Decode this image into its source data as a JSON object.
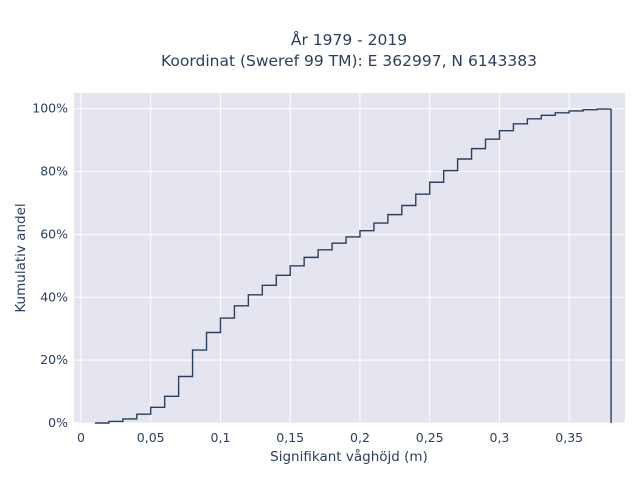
{
  "chart_data": {
    "type": "line",
    "line_shape": "step",
    "title_lines": [
      "År 1979 - 2019",
      "Koordinat (Sweref 99 TM): E 362997, N 6143383"
    ],
    "xlabel": "Signifikant våghöjd (m)",
    "ylabel": "Kumulativ andel",
    "xlim": [
      -0.005,
      0.39
    ],
    "ylim": [
      0,
      1.05
    ],
    "x_ticks": [
      0,
      0.05,
      0.1,
      0.15,
      0.2,
      0.25,
      0.3,
      0.35
    ],
    "x_tick_labels": [
      "0",
      "0,05",
      "0,1",
      "0,15",
      "0,2",
      "0,25",
      "0,3",
      "0,35"
    ],
    "y_ticks": [
      0,
      0.2,
      0.4,
      0.6,
      0.8,
      1.0
    ],
    "y_tick_labels": [
      "0%",
      "20%",
      "40%",
      "60%",
      "80%",
      "100%"
    ],
    "grid": true,
    "background": "#e5e5f0",
    "grid_color": "#ffffff",
    "line_color": "#2a3f5f",
    "series": [
      {
        "x": [
          0.01,
          0.02,
          0.03,
          0.04,
          0.05,
          0.06,
          0.07,
          0.08,
          0.09,
          0.1,
          0.11,
          0.12,
          0.13,
          0.14,
          0.15,
          0.16,
          0.17,
          0.18,
          0.19,
          0.2,
          0.21,
          0.22,
          0.23,
          0.24,
          0.25,
          0.26,
          0.27,
          0.28,
          0.29,
          0.3,
          0.31,
          0.32,
          0.33,
          0.34,
          0.35,
          0.36,
          0.37,
          0.38,
          0.38
        ],
        "y": [
          0.0,
          0.005,
          0.013,
          0.028,
          0.05,
          0.085,
          0.148,
          0.232,
          0.288,
          0.334,
          0.373,
          0.408,
          0.438,
          0.47,
          0.5,
          0.527,
          0.551,
          0.572,
          0.592,
          0.612,
          0.636,
          0.663,
          0.692,
          0.728,
          0.766,
          0.803,
          0.84,
          0.873,
          0.903,
          0.93,
          0.952,
          0.968,
          0.979,
          0.987,
          0.993,
          0.997,
          0.999,
          1.0,
          0.0
        ]
      }
    ]
  }
}
